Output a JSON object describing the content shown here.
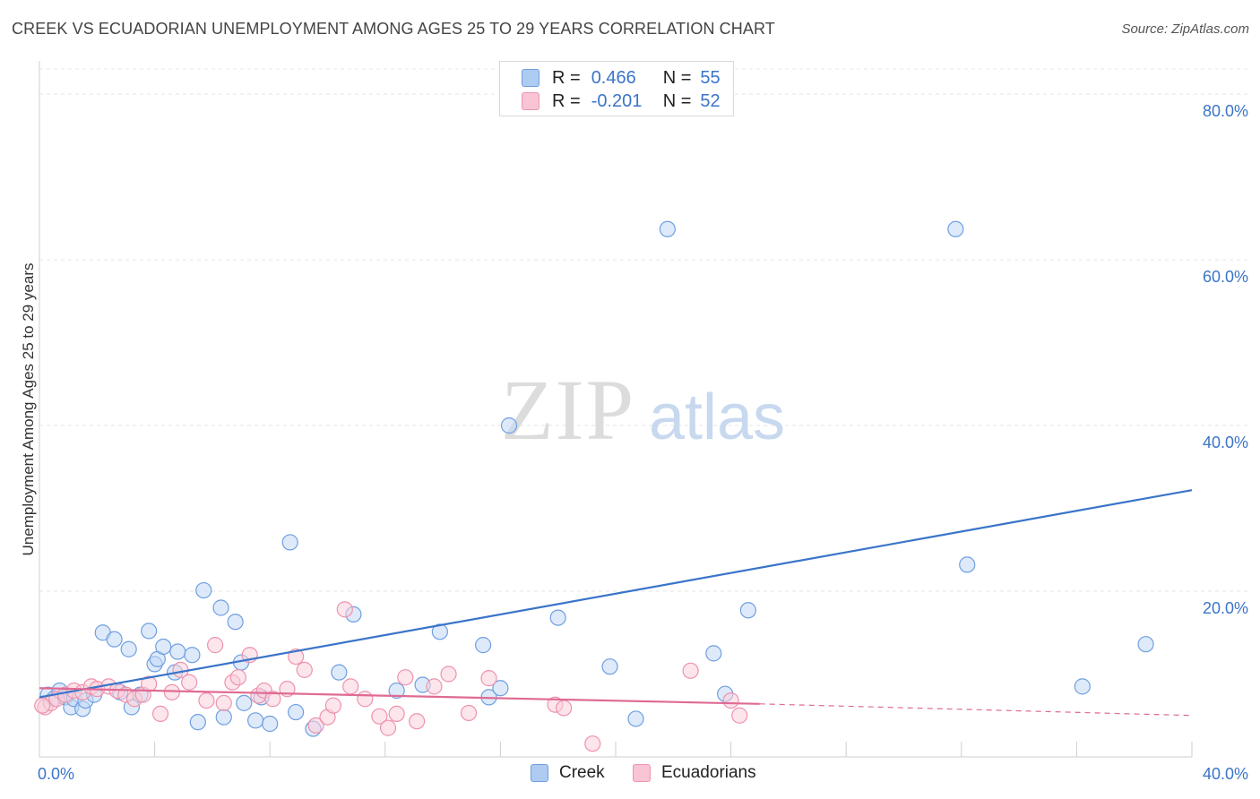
{
  "title": "CREEK VS ECUADORIAN UNEMPLOYMENT AMONG AGES 25 TO 29 YEARS CORRELATION CHART",
  "source": "Source: ZipAtlas.com",
  "watermark": {
    "zip": "ZIP",
    "atlas": "atlas"
  },
  "legend": {
    "r_label": "R =",
    "n_label": "N =",
    "rows": [
      {
        "r": "0.466",
        "n": "55",
        "color": "#aecbf2",
        "border": "#6f9fe0"
      },
      {
        "r": "-0.201",
        "n": "52",
        "color": "#f9c4d3",
        "border": "#ee93ad"
      }
    ]
  },
  "bottom_legend": [
    "Creek",
    "Ecuadorians"
  ],
  "chart_data": {
    "type": "scatter",
    "title": "CREEK VS ECUADORIAN UNEMPLOYMENT AMONG AGES 25 TO 29 YEARS CORRELATION CHART",
    "xlabel": "",
    "ylabel": "Unemployment Among Ages 25 to 29 years",
    "xlim": [
      0,
      40
    ],
    "ylim": [
      0,
      80
    ],
    "x_ticks": [
      "0.0%",
      "40.0%"
    ],
    "y_ticks": [
      {
        "value": 80,
        "label": "80.0%"
      },
      {
        "value": 60,
        "label": "60.0%"
      },
      {
        "value": 40,
        "label": "40.0%"
      },
      {
        "value": 20,
        "label": "20.0%"
      }
    ],
    "grid": true,
    "legend_position": "top-center",
    "series": [
      {
        "name": "Creek",
        "color": "#6f9fe0",
        "fill": "#c3d8f5",
        "trend": {
          "x": [
            0,
            40
          ],
          "y": [
            7.2,
            32.2
          ],
          "style": "solid",
          "color": "#3a74c9"
        },
        "points": [
          [
            0.3,
            7.5
          ],
          [
            0.5,
            7.0
          ],
          [
            0.7,
            8.0
          ],
          [
            0.9,
            7.2
          ],
          [
            1.1,
            6.0
          ],
          [
            1.2,
            7.0
          ],
          [
            1.5,
            5.8
          ],
          [
            1.6,
            6.8
          ],
          [
            1.9,
            7.5
          ],
          [
            2.2,
            15.0
          ],
          [
            2.6,
            14.2
          ],
          [
            2.8,
            7.8
          ],
          [
            3.1,
            13.0
          ],
          [
            3.2,
            6.0
          ],
          [
            3.5,
            7.5
          ],
          [
            3.8,
            15.2
          ],
          [
            4.0,
            11.2
          ],
          [
            4.1,
            11.8
          ],
          [
            4.3,
            13.3
          ],
          [
            4.7,
            10.2
          ],
          [
            4.8,
            12.7
          ],
          [
            5.3,
            12.3
          ],
          [
            5.5,
            4.2
          ],
          [
            5.7,
            20.1
          ],
          [
            6.3,
            18.0
          ],
          [
            6.4,
            4.8
          ],
          [
            6.8,
            16.3
          ],
          [
            7.0,
            11.4
          ],
          [
            7.1,
            6.5
          ],
          [
            7.5,
            4.4
          ],
          [
            7.7,
            7.2
          ],
          [
            8.0,
            4.0
          ],
          [
            8.7,
            25.9
          ],
          [
            8.9,
            5.4
          ],
          [
            9.5,
            3.4
          ],
          [
            10.4,
            10.2
          ],
          [
            10.9,
            17.2
          ],
          [
            12.4,
            8.0
          ],
          [
            13.3,
            8.7
          ],
          [
            13.9,
            15.1
          ],
          [
            15.4,
            13.5
          ],
          [
            15.6,
            7.2
          ],
          [
            16.0,
            8.3
          ],
          [
            16.3,
            40.0
          ],
          [
            18.0,
            16.8
          ],
          [
            19.8,
            10.9
          ],
          [
            20.7,
            4.6
          ],
          [
            21.8,
            63.7
          ],
          [
            23.4,
            12.5
          ],
          [
            23.8,
            7.6
          ],
          [
            24.6,
            17.7
          ],
          [
            31.8,
            63.7
          ],
          [
            32.2,
            23.2
          ],
          [
            38.4,
            13.6
          ],
          [
            36.2,
            8.5
          ]
        ]
      },
      {
        "name": "Ecuadorians",
        "color": "#ee93ad",
        "fill": "#f9cfdb",
        "trend": {
          "x": [
            0,
            25
          ],
          "y": [
            8.3,
            6.4
          ],
          "dashed_to": [
            40,
            5.0
          ],
          "color": "#e06a93"
        },
        "points": [
          [
            0.2,
            6.0
          ],
          [
            0.4,
            6.5
          ],
          [
            0.6,
            7.0
          ],
          [
            0.9,
            7.5
          ],
          [
            1.2,
            8.0
          ],
          [
            1.5,
            7.8
          ],
          [
            1.8,
            8.5
          ],
          [
            2.0,
            8.2
          ],
          [
            2.4,
            8.5
          ],
          [
            2.7,
            8.0
          ],
          [
            3.0,
            7.5
          ],
          [
            3.3,
            7.0
          ],
          [
            3.6,
            7.5
          ],
          [
            3.8,
            8.8
          ],
          [
            4.2,
            5.2
          ],
          [
            4.6,
            7.8
          ],
          [
            4.9,
            10.5
          ],
          [
            5.2,
            9.0
          ],
          [
            5.8,
            6.8
          ],
          [
            6.1,
            13.5
          ],
          [
            6.4,
            6.5
          ],
          [
            6.7,
            9.0
          ],
          [
            6.9,
            9.6
          ],
          [
            7.3,
            12.3
          ],
          [
            7.6,
            7.4
          ],
          [
            7.8,
            8.0
          ],
          [
            8.1,
            7.0
          ],
          [
            8.6,
            8.2
          ],
          [
            8.9,
            12.1
          ],
          [
            9.2,
            10.5
          ],
          [
            9.6,
            3.8
          ],
          [
            10.0,
            4.8
          ],
          [
            10.2,
            6.2
          ],
          [
            10.6,
            17.8
          ],
          [
            10.8,
            8.5
          ],
          [
            11.3,
            7.0
          ],
          [
            11.8,
            4.9
          ],
          [
            12.1,
            3.5
          ],
          [
            12.4,
            5.2
          ],
          [
            12.7,
            9.6
          ],
          [
            13.1,
            4.3
          ],
          [
            13.7,
            8.5
          ],
          [
            14.2,
            10.0
          ],
          [
            14.9,
            5.3
          ],
          [
            15.6,
            9.5
          ],
          [
            17.9,
            6.3
          ],
          [
            18.2,
            5.9
          ],
          [
            19.2,
            1.6
          ],
          [
            22.6,
            10.4
          ],
          [
            24.0,
            6.8
          ],
          [
            24.3,
            5.0
          ],
          [
            0.1,
            6.2
          ]
        ]
      }
    ]
  }
}
